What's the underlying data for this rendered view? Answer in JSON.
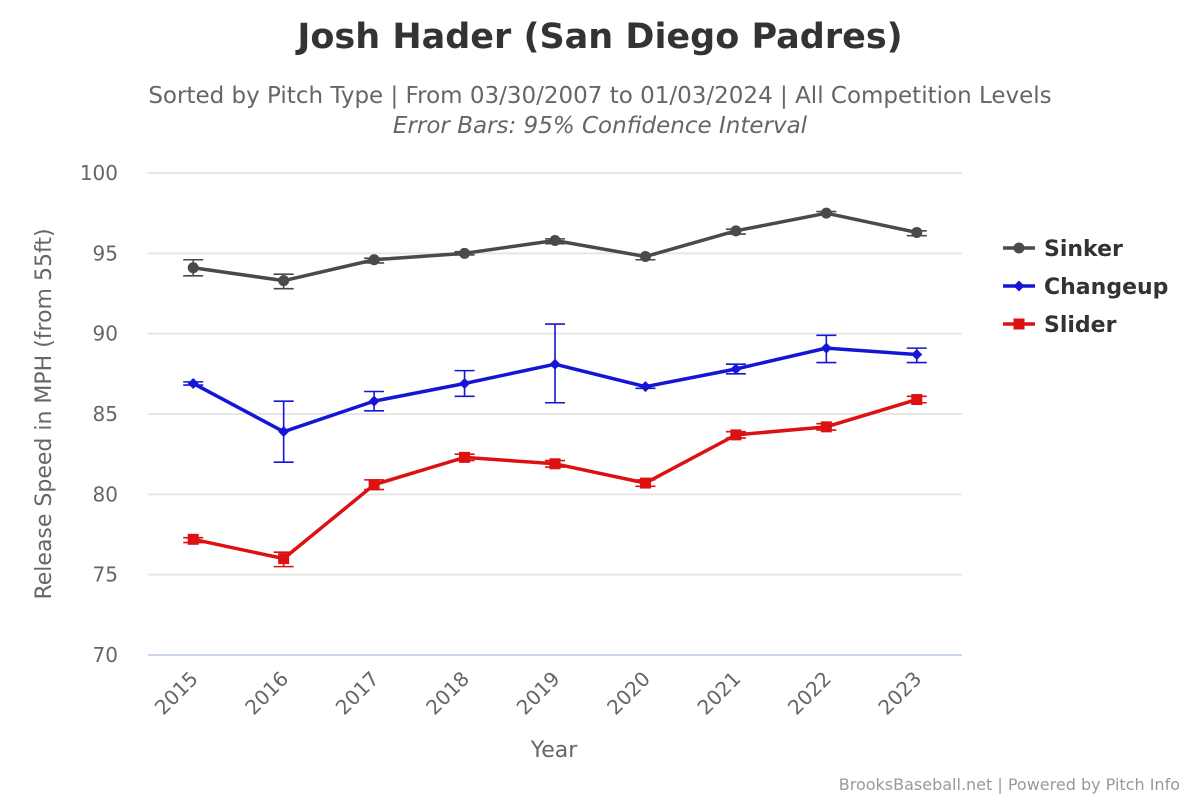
{
  "chart_data": {
    "type": "line",
    "title": "Josh Hader (San Diego Padres)",
    "subtitle": "Sorted by Pitch Type | From 03/30/2007 to 01/03/2024 | All Competition Levels",
    "subtitle2": "Error Bars: 95% Confidence Interval",
    "xlabel": "Year",
    "ylabel": "Release Speed in MPH (from 55ft)",
    "x": [
      "2015",
      "2016",
      "2017",
      "2018",
      "2019",
      "2020",
      "2021",
      "2022",
      "2023"
    ],
    "ylim": [
      70,
      100
    ],
    "yticks": [
      70,
      75,
      80,
      85,
      90,
      95,
      100
    ],
    "grid": true,
    "legend_position": "right",
    "series": [
      {
        "name": "Sinker",
        "color": "#4a4a4a",
        "marker": "circle",
        "values": [
          94.1,
          93.3,
          94.6,
          95.0,
          95.8,
          94.8,
          96.4,
          97.5,
          96.3
        ],
        "error_low": [
          93.6,
          92.8,
          94.4,
          94.9,
          95.6,
          94.6,
          96.2,
          97.4,
          96.1
        ],
        "error_high": [
          94.6,
          93.7,
          94.7,
          95.1,
          95.9,
          94.9,
          96.5,
          97.6,
          96.4
        ]
      },
      {
        "name": "Changeup",
        "color": "#1515d6",
        "marker": "diamond",
        "values": [
          86.9,
          83.9,
          85.8,
          86.9,
          88.1,
          86.7,
          87.8,
          89.1,
          88.7
        ],
        "error_low": [
          86.8,
          82.0,
          85.2,
          86.1,
          85.7,
          86.6,
          87.5,
          88.2,
          88.2
        ],
        "error_high": [
          87.0,
          85.8,
          86.4,
          87.7,
          90.6,
          86.8,
          88.1,
          89.9,
          89.1
        ]
      },
      {
        "name": "Slider",
        "color": "#dd1111",
        "marker": "square",
        "values": [
          77.2,
          76.0,
          80.6,
          82.3,
          81.9,
          80.7,
          83.7,
          84.2,
          85.9
        ],
        "error_low": [
          77.0,
          75.5,
          80.3,
          82.1,
          81.7,
          80.5,
          83.5,
          84.0,
          85.7
        ],
        "error_high": [
          77.3,
          76.4,
          80.9,
          82.5,
          82.1,
          80.9,
          83.9,
          84.4,
          86.1
        ]
      }
    ]
  },
  "credits": "BrooksBaseball.net | Powered by Pitch Info"
}
